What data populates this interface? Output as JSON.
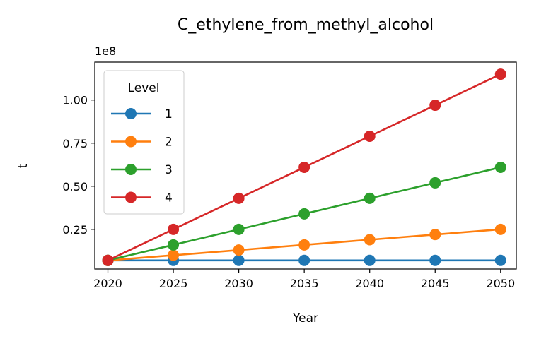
{
  "chart_data": {
    "type": "line",
    "title": "C_ethylene_from_methyl_alcohol",
    "xlabel": "Year",
    "ylabel": "t",
    "y_offset_label": "1e8",
    "x": [
      2020,
      2025,
      2030,
      2035,
      2040,
      2045,
      2050
    ],
    "x_ticks": [
      "2020",
      "2025",
      "2030",
      "2035",
      "2040",
      "2045",
      "2050"
    ],
    "y_ticks": [
      "0.25",
      "0.50",
      "0.75",
      "1.00"
    ],
    "ylim": [
      0.02,
      1.22
    ],
    "xlim": [
      2019,
      2051.2
    ],
    "legend_title": "Level",
    "legend_position": "upper-left",
    "grid": false,
    "series": [
      {
        "name": "1",
        "color": "#1f77b4",
        "values": [
          0.07,
          0.07,
          0.07,
          0.07,
          0.07,
          0.07,
          0.07
        ]
      },
      {
        "name": "2",
        "color": "#ff7f0e",
        "values": [
          0.07,
          0.1,
          0.13,
          0.16,
          0.19,
          0.22,
          0.25
        ]
      },
      {
        "name": "3",
        "color": "#2ca02c",
        "values": [
          0.07,
          0.16,
          0.25,
          0.34,
          0.43,
          0.52,
          0.61
        ]
      },
      {
        "name": "4",
        "color": "#d62728",
        "values": [
          0.07,
          0.25,
          0.43,
          0.61,
          0.79,
          0.97,
          1.15
        ]
      }
    ]
  }
}
